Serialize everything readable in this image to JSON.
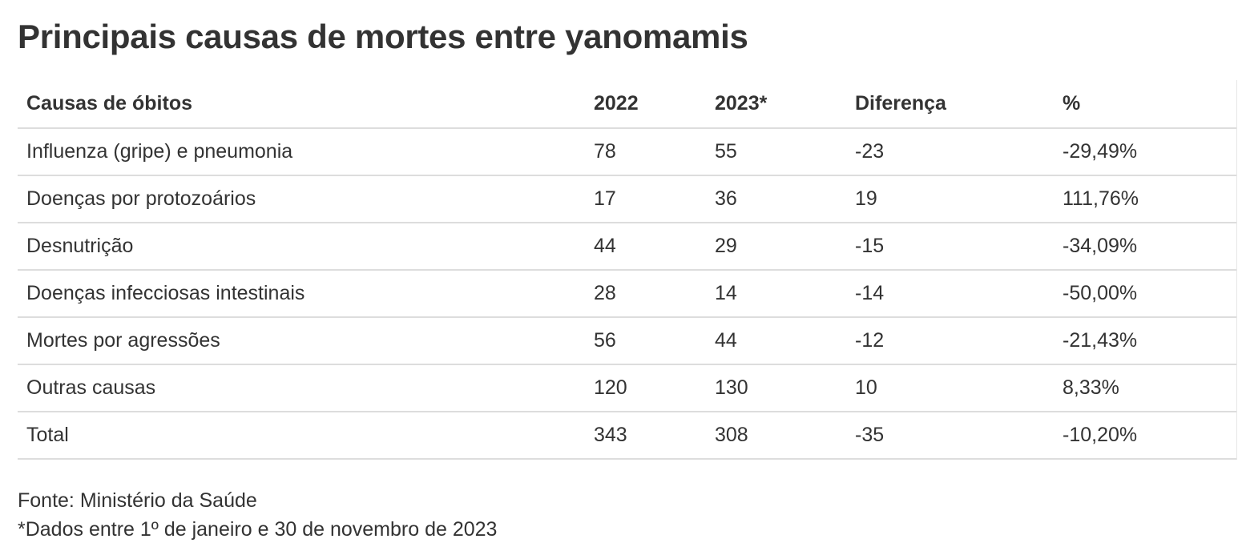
{
  "chart_data": {
    "type": "table",
    "title": "Principais causas de mortes entre yanomamis",
    "columns": [
      "Causas de óbitos",
      "2022",
      "2023*",
      "Diferença",
      "%"
    ],
    "rows": [
      [
        "Influenza (gripe) e pneumonia",
        "78",
        "55",
        "-23",
        "-29,49%"
      ],
      [
        "Doenças por protozoários",
        "17",
        "36",
        "19",
        "111,76%"
      ],
      [
        "Desnutrição",
        "44",
        "29",
        "-15",
        "-34,09%"
      ],
      [
        "Doenças infecciosas intestinais",
        "28",
        "14",
        "-14",
        "-50,00%"
      ],
      [
        "Mortes por agressões",
        "56",
        "44",
        "-12",
        "-21,43%"
      ],
      [
        "Outras causas",
        "120",
        "130",
        "10",
        "8,33%"
      ],
      [
        "Total",
        "343",
        "308",
        "-35",
        "-10,20%"
      ]
    ]
  },
  "footer": {
    "source": "Fonte: Ministério da Saúde",
    "note": "*Dados entre 1º de janeiro e 30 de novembro de 2023"
  },
  "colors": {
    "text": "#333333",
    "row_border": "#dddddd",
    "background": "#ffffff"
  }
}
